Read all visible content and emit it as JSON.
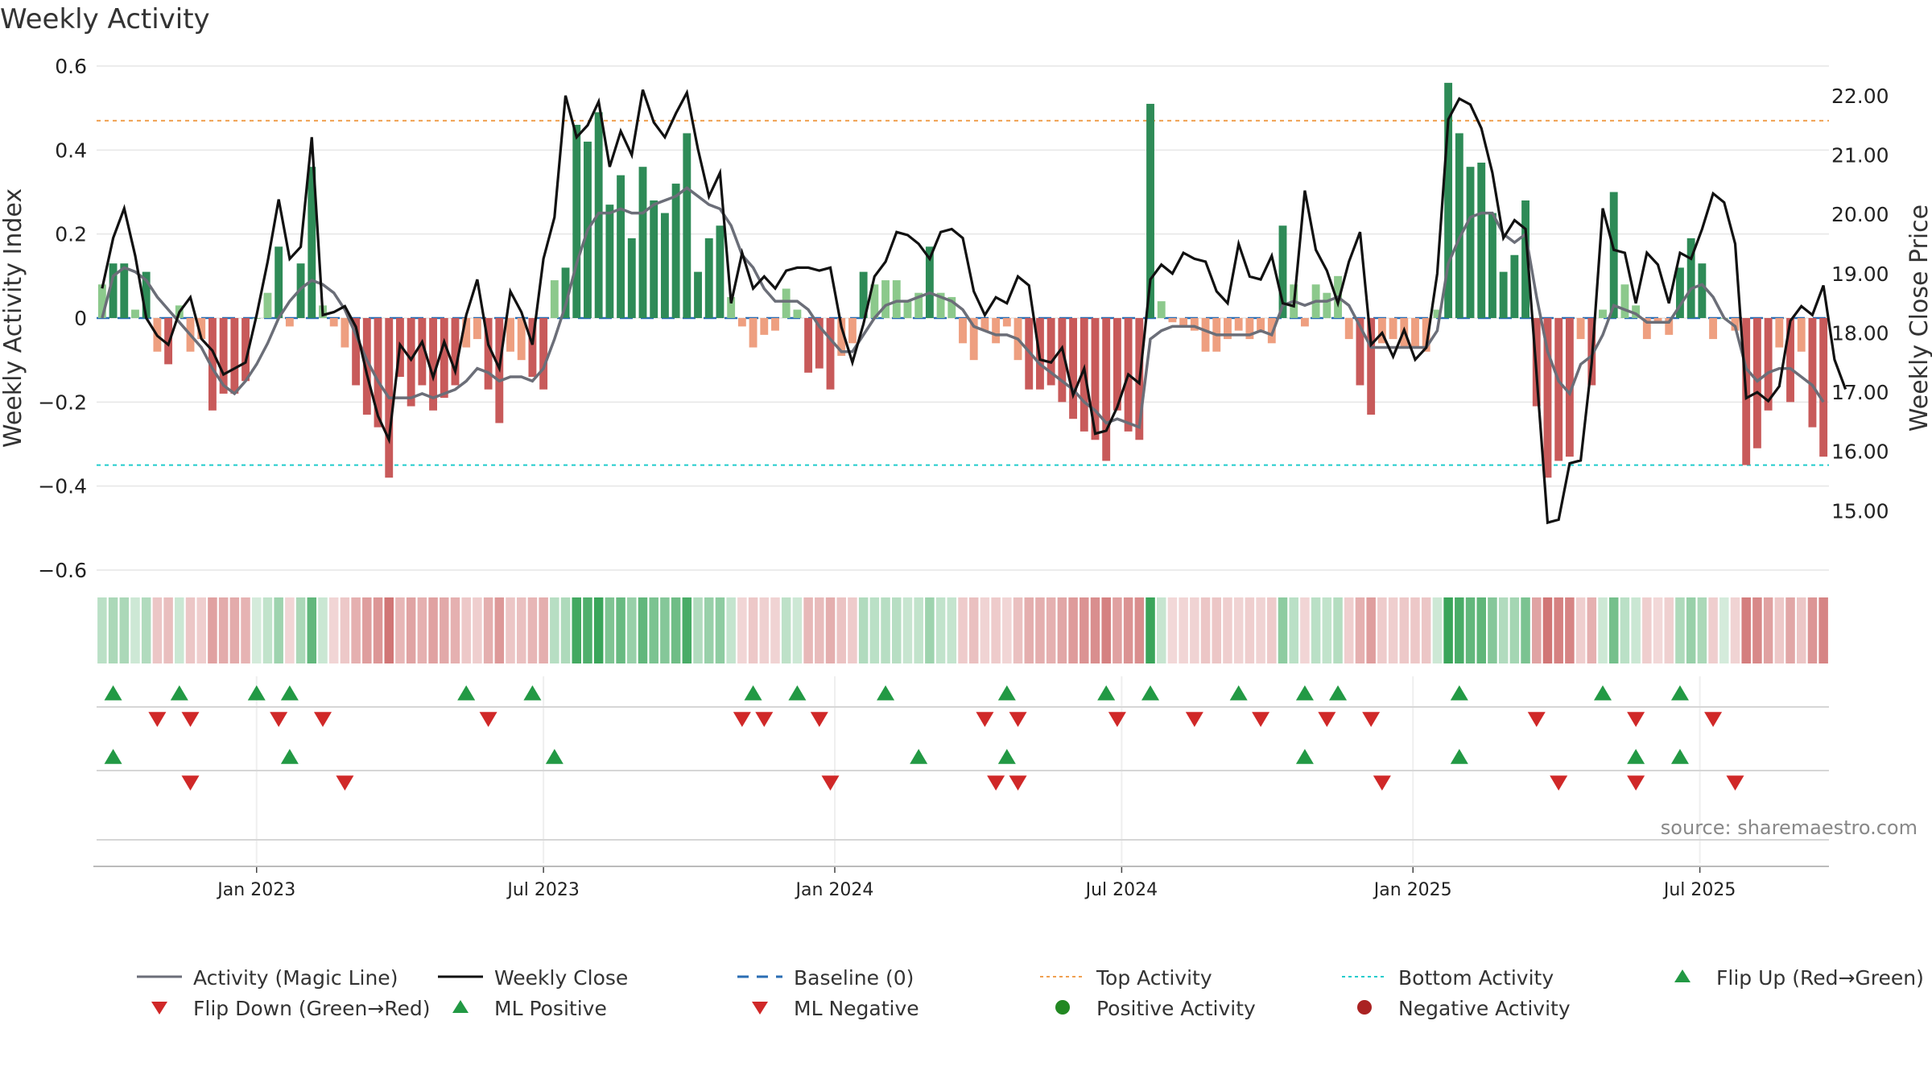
{
  "title": "Weekly Activity",
  "source": "source: sharemaestro.com",
  "colors": {
    "bar_pos_strong": "#2e8b57",
    "bar_pos_weak": "#8cc98c",
    "bar_neg_strong": "#c85a5a",
    "bar_neg_weak": "#ee9f80",
    "magic_line": "#6b6e78",
    "close_line": "#111111",
    "baseline": "#2a6db3",
    "top": "#f0a050",
    "bottom": "#22cccc",
    "up_marker": "#229944",
    "down_marker": "#d02828",
    "grid": "#e6e6e6"
  },
  "chart_data": {
    "type": "bar+line",
    "title": "Weekly Activity",
    "ylabel": "Weekly Activity Index",
    "ylabel_right": "Weekly Close Price",
    "ylim": [
      -0.6,
      0.6
    ],
    "ylim_right": [
      14.0,
      22.5
    ],
    "yticks": [
      0.6,
      0.4,
      0.2,
      0,
      -0.2,
      -0.4,
      -0.6
    ],
    "ytick_labels": [
      "0.6",
      "0.4",
      "0.2",
      "0",
      "−0.2",
      "−0.4",
      "−0.6"
    ],
    "yticks_right": [
      22,
      21,
      20,
      19,
      18,
      17,
      16,
      15
    ],
    "ytick_labels_right": [
      "22.00",
      "21.00",
      "20.00",
      "19.00",
      "18.00",
      "17.00",
      "16.00",
      "15.00"
    ],
    "x_ticks": [
      {
        "label": "Jan 2023",
        "week": 14.5
      },
      {
        "label": "Jul 2023",
        "week": 40.5
      },
      {
        "label": "Jan 2024",
        "week": 66.9
      },
      {
        "label": "Jul 2024",
        "week": 92.9
      },
      {
        "label": "Jan 2025",
        "week": 119.3
      },
      {
        "label": "Jul 2025",
        "week": 145.3
      }
    ],
    "top_activity": 0.47,
    "bottom_activity": -0.35,
    "baseline": 0,
    "activity": [
      0.08,
      0.13,
      0.13,
      0.02,
      0.11,
      -0.08,
      -0.11,
      0.03,
      -0.08,
      -0.05,
      -0.22,
      -0.18,
      -0.18,
      -0.15,
      0.0,
      0.06,
      0.17,
      -0.02,
      0.13,
      0.36,
      0.03,
      -0.02,
      -0.07,
      -0.16,
      -0.23,
      -0.26,
      -0.38,
      -0.14,
      -0.21,
      -0.16,
      -0.22,
      -0.19,
      -0.16,
      -0.07,
      -0.05,
      -0.17,
      -0.25,
      -0.08,
      -0.1,
      -0.14,
      -0.17,
      0.09,
      0.12,
      0.46,
      0.42,
      0.49,
      0.27,
      0.34,
      0.19,
      0.36,
      0.28,
      0.25,
      0.32,
      0.44,
      0.11,
      0.19,
      0.22,
      0.05,
      -0.02,
      -0.07,
      -0.04,
      -0.03,
      0.07,
      0.02,
      -0.13,
      -0.12,
      -0.17,
      -0.09,
      -0.06,
      0.11,
      0.08,
      0.09,
      0.09,
      0.04,
      0.06,
      0.17,
      0.06,
      0.05,
      -0.06,
      -0.1,
      -0.03,
      -0.06,
      -0.02,
      -0.1,
      -0.17,
      -0.17,
      -0.16,
      -0.2,
      -0.24,
      -0.27,
      -0.29,
      -0.34,
      -0.22,
      -0.27,
      -0.29,
      0.51,
      0.04,
      -0.01,
      -0.02,
      -0.03,
      -0.08,
      -0.08,
      -0.05,
      -0.03,
      -0.05,
      -0.03,
      -0.06,
      0.22,
      0.08,
      -0.02,
      0.08,
      0.06,
      0.1,
      -0.05,
      -0.16,
      -0.23,
      -0.06,
      -0.05,
      -0.07,
      -0.07,
      -0.08,
      0.02,
      0.56,
      0.44,
      0.36,
      0.37,
      0.25,
      0.11,
      0.15,
      0.28,
      -0.21,
      -0.38,
      -0.34,
      -0.33,
      -0.05,
      -0.16,
      0.02,
      0.3,
      0.08,
      0.03,
      -0.05,
      -0.01,
      -0.04,
      0.12,
      0.19,
      0.13,
      -0.05,
      0.0,
      -0.03,
      -0.35,
      -0.31,
      -0.22,
      -0.07,
      -0.2,
      -0.08,
      -0.26,
      -0.33
    ],
    "magic_line": [
      0.0,
      0.1,
      0.12,
      0.11,
      0.09,
      0.05,
      0.02,
      -0.01,
      -0.04,
      -0.07,
      -0.12,
      -0.16,
      -0.18,
      -0.15,
      -0.11,
      -0.06,
      0.0,
      0.04,
      0.07,
      0.09,
      0.08,
      0.06,
      0.02,
      -0.04,
      -0.1,
      -0.15,
      -0.19,
      -0.19,
      -0.19,
      -0.18,
      -0.19,
      -0.18,
      -0.17,
      -0.15,
      -0.12,
      -0.13,
      -0.15,
      -0.14,
      -0.14,
      -0.15,
      -0.12,
      -0.05,
      0.03,
      0.13,
      0.21,
      0.25,
      0.25,
      0.26,
      0.25,
      0.25,
      0.27,
      0.28,
      0.29,
      0.31,
      0.29,
      0.27,
      0.26,
      0.22,
      0.15,
      0.12,
      0.07,
      0.04,
      0.04,
      0.04,
      0.02,
      -0.02,
      -0.05,
      -0.08,
      -0.08,
      -0.04,
      0.0,
      0.03,
      0.04,
      0.04,
      0.05,
      0.06,
      0.05,
      0.04,
      0.02,
      -0.02,
      -0.03,
      -0.04,
      -0.04,
      -0.05,
      -0.08,
      -0.11,
      -0.13,
      -0.15,
      -0.17,
      -0.2,
      -0.22,
      -0.25,
      -0.24,
      -0.25,
      -0.26,
      -0.05,
      -0.03,
      -0.02,
      -0.02,
      -0.02,
      -0.03,
      -0.04,
      -0.04,
      -0.04,
      -0.04,
      -0.03,
      -0.04,
      0.03,
      0.04,
      0.03,
      0.04,
      0.04,
      0.05,
      0.03,
      -0.02,
      -0.07,
      -0.07,
      -0.07,
      -0.07,
      -0.07,
      -0.07,
      -0.03,
      0.13,
      0.19,
      0.24,
      0.25,
      0.25,
      0.2,
      0.18,
      0.2,
      0.05,
      -0.08,
      -0.15,
      -0.18,
      -0.11,
      -0.09,
      -0.04,
      0.03,
      0.02,
      0.01,
      -0.01,
      -0.01,
      -0.01,
      0.03,
      0.07,
      0.08,
      0.05,
      0.0,
      -0.02,
      -0.12,
      -0.15,
      -0.13,
      -0.12,
      -0.12,
      -0.14,
      -0.16,
      -0.2
    ],
    "weekly_close": [
      18.75,
      19.6,
      20.1,
      19.3,
      18.25,
      17.95,
      17.8,
      18.35,
      18.6,
      17.9,
      17.7,
      17.3,
      17.4,
      17.5,
      18.3,
      19.2,
      20.25,
      19.25,
      19.45,
      21.3,
      18.3,
      18.35,
      18.45,
      18.1,
      17.3,
      16.6,
      16.2,
      17.8,
      17.55,
      17.85,
      17.25,
      17.85,
      17.35,
      18.3,
      18.9,
      17.8,
      17.4,
      18.7,
      18.35,
      17.8,
      19.25,
      19.95,
      22.0,
      21.3,
      21.5,
      21.9,
      20.8,
      21.4,
      21.0,
      22.1,
      21.55,
      21.3,
      21.7,
      22.05,
      21.1,
      20.3,
      20.7,
      18.5,
      19.35,
      18.75,
      18.95,
      18.75,
      19.05,
      19.1,
      19.1,
      19.05,
      19.1,
      18.1,
      17.5,
      18.15,
      18.95,
      19.2,
      19.7,
      19.65,
      19.5,
      19.25,
      19.7,
      19.75,
      19.6,
      18.7,
      18.3,
      18.6,
      18.5,
      18.95,
      18.8,
      17.55,
      17.5,
      17.75,
      16.95,
      17.4,
      16.3,
      16.35,
      16.75,
      17.3,
      17.15,
      18.9,
      19.15,
      19.0,
      19.35,
      19.25,
      19.2,
      18.7,
      18.5,
      19.5,
      18.95,
      18.9,
      19.3,
      18.5,
      18.45,
      20.4,
      19.4,
      19.05,
      18.5,
      19.2,
      19.7,
      17.8,
      18.0,
      17.6,
      18.05,
      17.55,
      17.75,
      19.0,
      21.6,
      21.95,
      21.85,
      21.45,
      20.7,
      19.6,
      19.9,
      19.75,
      17.3,
      14.8,
      14.85,
      15.8,
      15.85,
      17.5,
      20.1,
      19.4,
      19.35,
      18.5,
      19.35,
      19.15,
      18.5,
      19.35,
      19.25,
      19.75,
      20.35,
      20.2,
      19.5,
      16.9,
      17.0,
      16.85,
      17.1,
      18.2,
      18.45,
      18.3,
      18.8,
      17.55,
      17.05
    ],
    "flip_up": [
      1,
      7,
      14,
      17,
      33,
      39,
      59,
      63,
      71,
      82,
      91,
      95,
      103,
      109,
      112,
      123,
      136,
      143
    ],
    "flip_down": [
      5,
      8,
      16,
      20,
      35,
      58,
      60,
      65,
      80,
      83,
      92,
      99,
      105,
      111,
      115,
      130,
      139,
      146
    ],
    "ml_positive": [
      1,
      17,
      41,
      74,
      82,
      109,
      123,
      139,
      143
    ],
    "ml_negative": [
      8,
      22,
      66,
      81,
      83,
      116,
      132,
      139,
      148
    ]
  },
  "legend": [
    {
      "label": "Activity (Magic Line)",
      "kind": "line",
      "color": "#6b6e78"
    },
    {
      "label": "Weekly Close",
      "kind": "line",
      "color": "#111111"
    },
    {
      "label": "Baseline (0)",
      "kind": "dash",
      "color": "#2a6db3"
    },
    {
      "label": "Top Activity",
      "kind": "dot",
      "color": "#f0a050"
    },
    {
      "label": "Bottom Activity",
      "kind": "dot",
      "color": "#22cccc"
    },
    {
      "label": "Flip Up (Red→Green)",
      "kind": "tri-up",
      "color": "#229944"
    },
    {
      "label": "Flip Down (Green→Red)",
      "kind": "tri-down",
      "color": "#d02828"
    },
    {
      "label": "ML Positive",
      "kind": "tri-up",
      "color": "#229944"
    },
    {
      "label": "ML Negative",
      "kind": "tri-down",
      "color": "#d02828"
    },
    {
      "label": "Positive Activity",
      "kind": "circle",
      "color": "#228822"
    },
    {
      "label": "Negative Activity",
      "kind": "circle",
      "color": "#aa2222"
    }
  ]
}
